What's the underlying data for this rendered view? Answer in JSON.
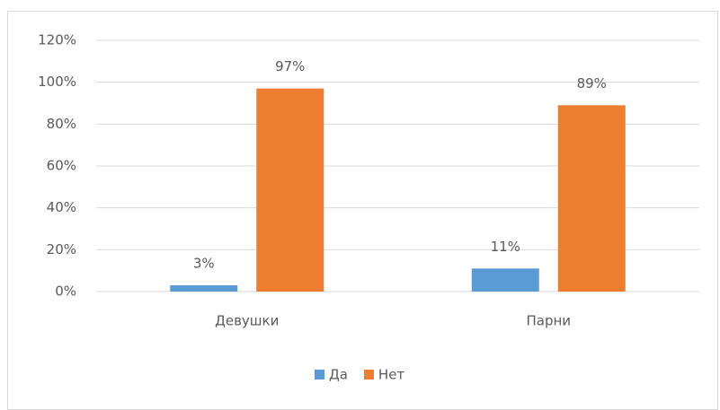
{
  "chart_data": {
    "type": "bar",
    "categories": [
      "Девушки",
      "Парни"
    ],
    "series": [
      {
        "name": "Да",
        "color": "#5b9bd5",
        "values": [
          3,
          11
        ],
        "value_labels": [
          "3%",
          "11%"
        ]
      },
      {
        "name": "Нет",
        "color": "#ed7d31",
        "values": [
          97,
          89
        ],
        "value_labels": [
          "97%",
          "89%"
        ]
      }
    ],
    "ylim": [
      0,
      120
    ],
    "yticks": [
      {
        "value": 0,
        "label": "0%"
      },
      {
        "value": 20,
        "label": "20%"
      },
      {
        "value": 40,
        "label": "40%"
      },
      {
        "value": 60,
        "label": "60%"
      },
      {
        "value": 80,
        "label": "80%"
      },
      {
        "value": 100,
        "label": "100%"
      },
      {
        "value": 120,
        "label": "120%"
      }
    ],
    "grid": true,
    "legend": "bottom"
  }
}
